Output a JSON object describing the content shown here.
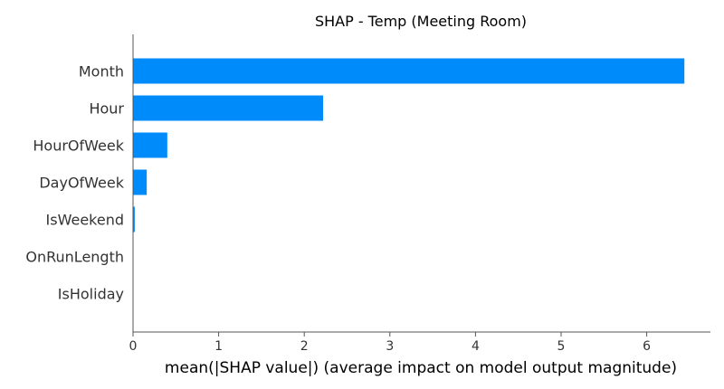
{
  "chart_data": {
    "type": "bar",
    "orientation": "horizontal",
    "title": "SHAP - Temp (Meeting Room)",
    "xlabel": "mean(|SHAP value|) (average impact on model output magnitude)",
    "ylabel": "",
    "categories": [
      "Month",
      "Hour",
      "HourOfWeek",
      "DayOfWeek",
      "IsWeekend",
      "OnRunLength",
      "IsHoliday"
    ],
    "values": [
      6.44,
      2.22,
      0.4,
      0.16,
      0.02,
      0.0,
      0.0
    ],
    "xlim": [
      0,
      6.75
    ],
    "xticks": [
      0,
      1,
      2,
      3,
      4,
      5,
      6
    ],
    "xtick_labels": [
      "0",
      "1",
      "2",
      "3",
      "4",
      "5",
      "6"
    ],
    "grid": false,
    "legend": "none",
    "colors": {
      "bar": "#008bfb",
      "axis": "#555555"
    }
  }
}
